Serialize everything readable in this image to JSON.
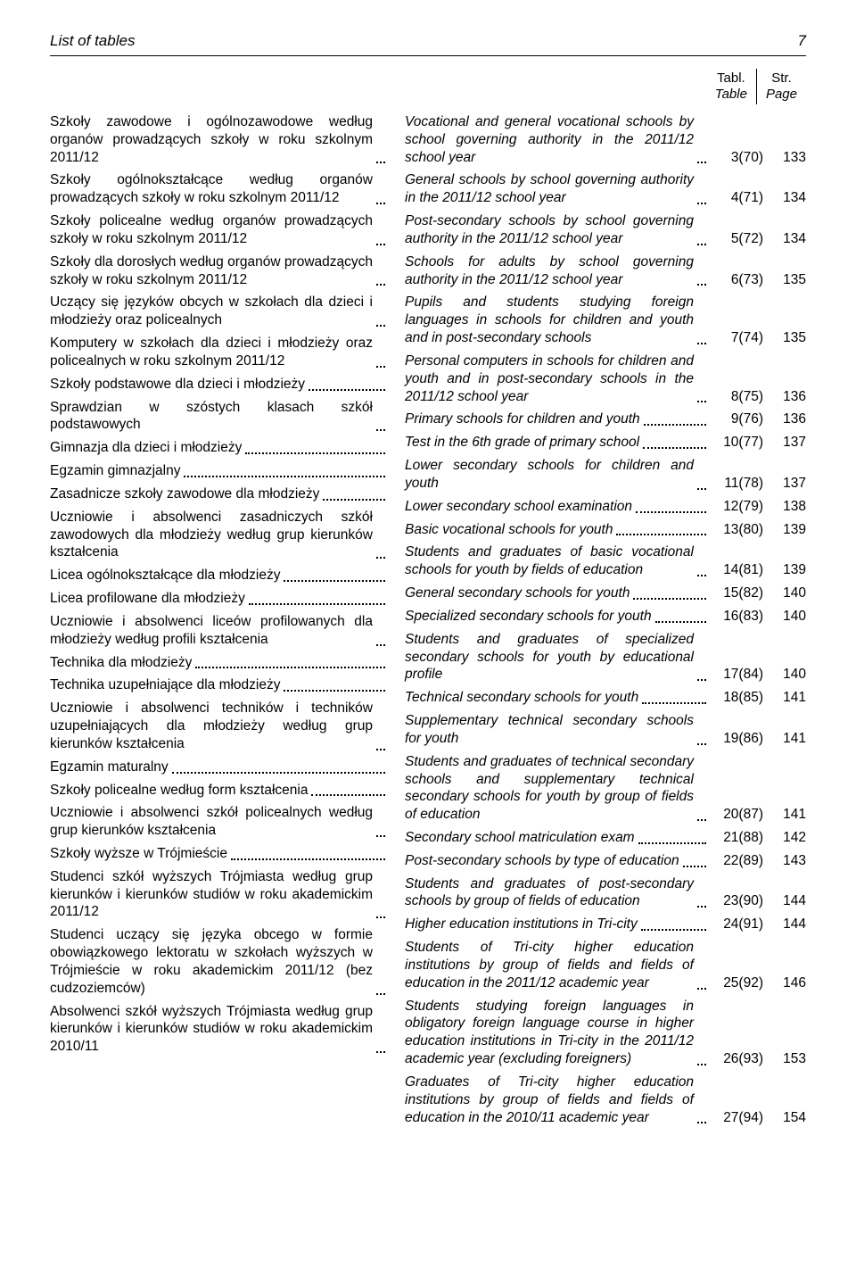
{
  "running_head": "List of tables",
  "page_number": "7",
  "header": {
    "tabl": "Tabl.",
    "table": "Table",
    "str": "Str.",
    "page": "Page"
  },
  "left": [
    {
      "pl": "Szkoły zawodowe i ogólnozawodowe według organów prowadzących szkoły w roku szkolnym 2011/12"
    },
    {
      "pl": "Szkoły ogólnokształcące według organów prowadzących szkoły w roku szkolnym 2011/12"
    },
    {
      "pl": "Szkoły policealne według organów prowadzących szkoły w roku szkolnym 2011/12"
    },
    {
      "pl": "Szkoły dla dorosłych według organów prowadzących szkoły w roku szkolnym 2011/12"
    },
    {
      "pl": "Uczący się języków obcych w szkołach dla dzieci i młodzieży oraz policealnych"
    },
    {
      "pl": "Komputery w szkołach dla dzieci i młodzieży oraz policealnych w roku szkolnym 2011/12"
    },
    {
      "pl": "Szkoły podstawowe dla dzieci i młodzieży"
    },
    {
      "pl": "Sprawdzian w szóstych klasach szkół podstawowych"
    },
    {
      "pl": "Gimnazja dla dzieci i młodzieży"
    },
    {
      "pl": "Egzamin gimnazjalny"
    },
    {
      "pl": "Zasadnicze szkoły zawodowe dla młodzieży"
    },
    {
      "pl": "Uczniowie i absolwenci zasadniczych szkół zawodowych dla młodzieży według grup kierunków kształcenia"
    },
    {
      "pl": "Licea ogólnokształcące dla młodzieży"
    },
    {
      "pl": "Licea profilowane dla młodzieży"
    },
    {
      "pl": "Uczniowie i absolwenci liceów profilowanych dla młodzieży według profili kształcenia"
    },
    {
      "pl": "Technika dla młodzieży"
    },
    {
      "pl": "Technika uzupełniające dla młodzieży"
    },
    {
      "pl": "Uczniowie i absolwenci techników i techników uzupełniających dla młodzieży według grup kierunków kształcenia"
    },
    {
      "pl": "Egzamin maturalny"
    },
    {
      "pl": "Szkoły policealne według form kształcenia"
    },
    {
      "pl": "Uczniowie i absolwenci szkół policealnych według grup kierunków kształcenia"
    },
    {
      "pl": "Szkoły wyższe w Trójmieście"
    },
    {
      "pl": "Studenci szkół wyższych Trójmiasta według grup kierunków i kierunków studiów w roku akademickim 2011/12"
    },
    {
      "pl": "Studenci uczący się języka obcego w formie obowiązkowego lektoratu w szkołach wyższych w Trójmieście w roku akademickim 2011/12 (bez cudzoziemców)"
    },
    {
      "pl": "Absolwenci szkół wyższych Trójmiasta według grup kierunków i kierunków studiów w roku akademickim 2010/11"
    }
  ],
  "right": [
    {
      "en": "Vocational and general vocational schools by school governing authority in the 2011/12 school year",
      "tbl": "3(70)",
      "pg": "133"
    },
    {
      "en": "General schools by school governing authority in the 2011/12 school year",
      "tbl": "4(71)",
      "pg": "134"
    },
    {
      "en": "Post-secondary schools by school governing authority in the 2011/12 school year",
      "tbl": "5(72)",
      "pg": "134"
    },
    {
      "en": "Schools for adults by school governing authority in the 2011/12 school year",
      "tbl": "6(73)",
      "pg": "135"
    },
    {
      "en": "Pupils and students studying foreign languages in schools for children and youth and in post-secondary schools",
      "tbl": "7(74)",
      "pg": "135"
    },
    {
      "en": "Personal computers in schools for children and youth and in post-secondary schools in the 2011/12 school year",
      "tbl": "8(75)",
      "pg": "136"
    },
    {
      "en": "Primary schools for children and youth",
      "tbl": "9(76)",
      "pg": "136"
    },
    {
      "en": "Test in the 6th grade of primary school",
      "tbl": "10(77)",
      "pg": "137"
    },
    {
      "en": "Lower secondary schools for children and youth",
      "tbl": "11(78)",
      "pg": "137"
    },
    {
      "en": "Lower secondary school examination",
      "tbl": "12(79)",
      "pg": "138"
    },
    {
      "en": "Basic vocational schools for youth",
      "tbl": "13(80)",
      "pg": "139"
    },
    {
      "en": "Students and graduates of basic vocational schools for youth by fields of education",
      "tbl": "14(81)",
      "pg": "139"
    },
    {
      "en": "General secondary schools for youth",
      "tbl": "15(82)",
      "pg": "140"
    },
    {
      "en": "Specialized secondary schools for youth",
      "tbl": "16(83)",
      "pg": "140"
    },
    {
      "en": "Students and graduates of specialized secondary schools for youth by educational profile",
      "tbl": "17(84)",
      "pg": "140"
    },
    {
      "en": "Technical secondary schools for youth",
      "tbl": "18(85)",
      "pg": "141"
    },
    {
      "en": "Supplementary technical secondary schools for youth",
      "tbl": "19(86)",
      "pg": "141"
    },
    {
      "en": "Students and graduates of technical secondary schools and supplementary technical secondary schools for youth by group of fields of education",
      "tbl": "20(87)",
      "pg": "141"
    },
    {
      "en": "Secondary school matriculation exam",
      "tbl": "21(88)",
      "pg": "142"
    },
    {
      "en": "Post-secondary schools by type of education",
      "tbl": "22(89)",
      "pg": "143"
    },
    {
      "en": "Students and graduates of post-secondary schools by group of fields of education",
      "tbl": "23(90)",
      "pg": "144"
    },
    {
      "en": "Higher education institutions in Tri-city",
      "tbl": "24(91)",
      "pg": "144"
    },
    {
      "en": "Students of Tri-city higher education institutions by group of fields and fields of education in the 2011/12 academic year",
      "tbl": "25(92)",
      "pg": "146"
    },
    {
      "en": "Students studying foreign languages in obligatory foreign language course in higher education institutions in Tri-city in the 2011/12 academic year (excluding foreigners)",
      "tbl": "26(93)",
      "pg": "153"
    },
    {
      "en": "Graduates of Tri-city higher education institutions by group of fields and fields of education in the 2010/11 academic year",
      "tbl": "27(94)",
      "pg": "154"
    }
  ]
}
